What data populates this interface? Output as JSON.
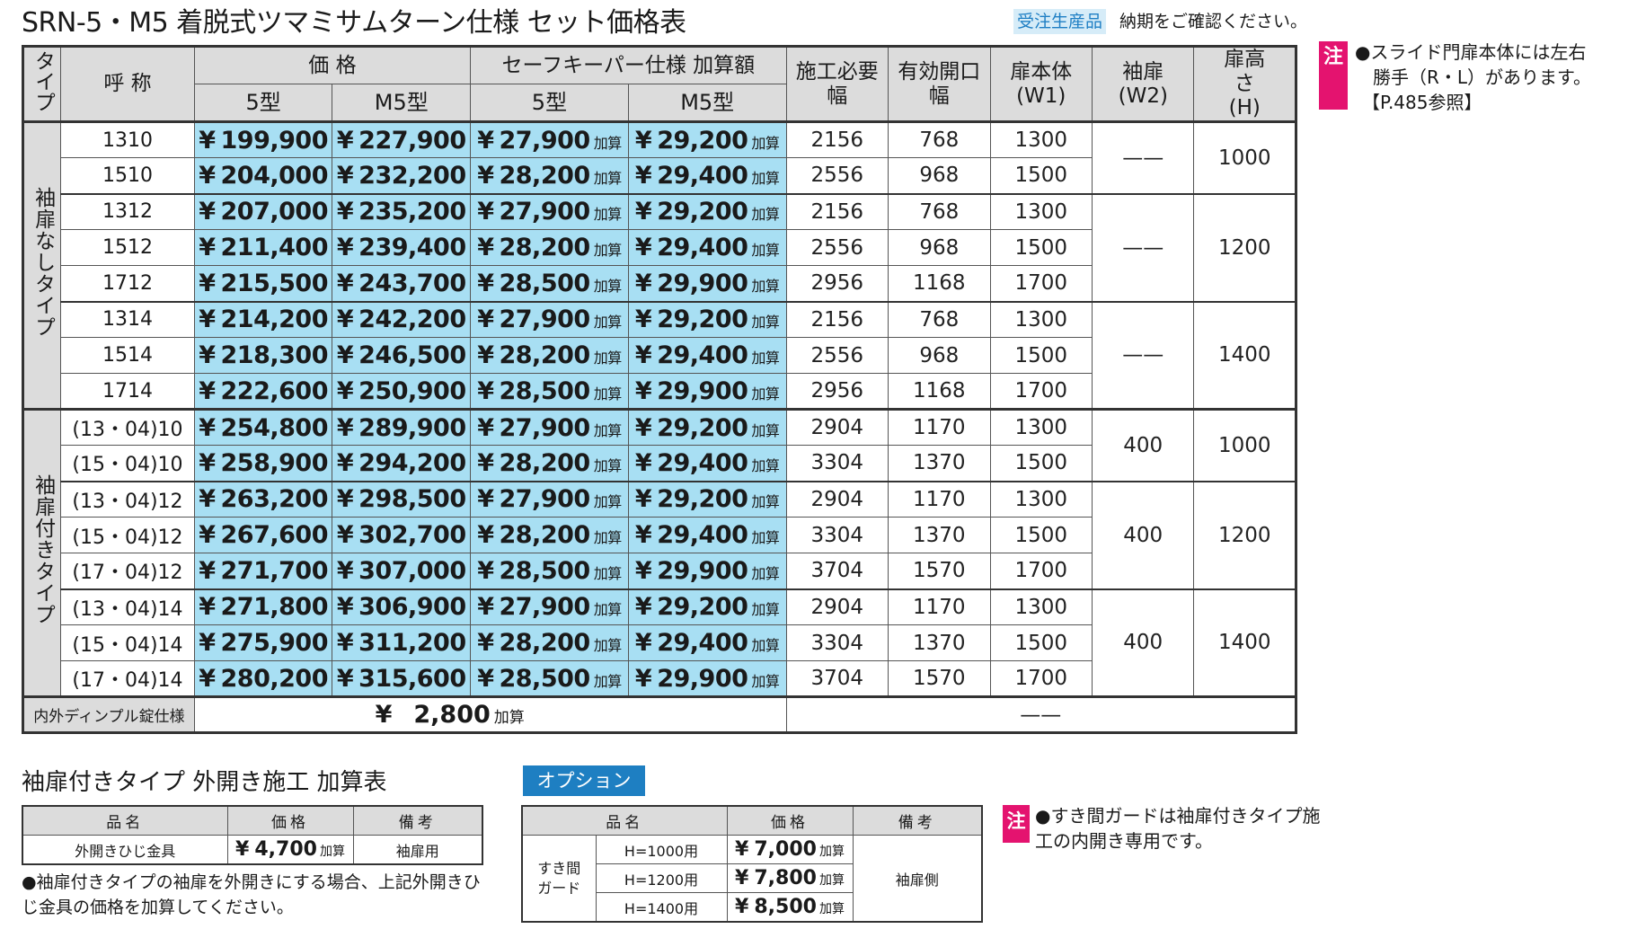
{
  "header": {
    "title": "SRN-5・M5 着脱式ツマミサムターン仕様 セット価格表",
    "order_badge": "受注生産品",
    "order_note": "納期をご確認ください。"
  },
  "main_table": {
    "headers": {
      "type": "タイプ",
      "name": "呼 称",
      "price": "価 格",
      "safekeeper": "セーフキーパー仕様 加算額",
      "price_5": "5型",
      "price_m5": "M5型",
      "sk_5": "5型",
      "sk_m5": "M5型",
      "sekou": "施工必要幅",
      "yuko": "有効開口幅",
      "w1": "扉本体(W1)",
      "w2": "袖扉(W2)",
      "h": "扉高さ(H)"
    },
    "yen": "¥",
    "add_unit": "加算",
    "dash": "——",
    "sections": [
      {
        "type_label": "袖扉なしタイプ",
        "groups": [
          {
            "w2": "——",
            "h": "1000",
            "rows": [
              {
                "name": "1310",
                "p5": "199,900",
                "pm5": "227,900",
                "sk5": "27,900",
                "skm5": "29,200",
                "sekou": "2156",
                "yuko": "768",
                "w1": "1300"
              },
              {
                "name": "1510",
                "p5": "204,000",
                "pm5": "232,200",
                "sk5": "28,200",
                "skm5": "29,400",
                "sekou": "2556",
                "yuko": "968",
                "w1": "1500"
              }
            ]
          },
          {
            "w2": "——",
            "h": "1200",
            "rows": [
              {
                "name": "1312",
                "p5": "207,000",
                "pm5": "235,200",
                "sk5": "27,900",
                "skm5": "29,200",
                "sekou": "2156",
                "yuko": "768",
                "w1": "1300"
              },
              {
                "name": "1512",
                "p5": "211,400",
                "pm5": "239,400",
                "sk5": "28,200",
                "skm5": "29,400",
                "sekou": "2556",
                "yuko": "968",
                "w1": "1500"
              },
              {
                "name": "1712",
                "p5": "215,500",
                "pm5": "243,700",
                "sk5": "28,500",
                "skm5": "29,900",
                "sekou": "2956",
                "yuko": "1168",
                "w1": "1700"
              }
            ]
          },
          {
            "w2": "——",
            "h": "1400",
            "rows": [
              {
                "name": "1314",
                "p5": "214,200",
                "pm5": "242,200",
                "sk5": "27,900",
                "skm5": "29,200",
                "sekou": "2156",
                "yuko": "768",
                "w1": "1300"
              },
              {
                "name": "1514",
                "p5": "218,300",
                "pm5": "246,500",
                "sk5": "28,200",
                "skm5": "29,400",
                "sekou": "2556",
                "yuko": "968",
                "w1": "1500"
              },
              {
                "name": "1714",
                "p5": "222,600",
                "pm5": "250,900",
                "sk5": "28,500",
                "skm5": "29,900",
                "sekou": "2956",
                "yuko": "1168",
                "w1": "1700"
              }
            ]
          }
        ]
      },
      {
        "type_label": "袖扉付きタイプ",
        "groups": [
          {
            "w2": "400",
            "h": "1000",
            "rows": [
              {
                "name": "(13・04)10",
                "p5": "254,800",
                "pm5": "289,900",
                "sk5": "27,900",
                "skm5": "29,200",
                "sekou": "2904",
                "yuko": "1170",
                "w1": "1300"
              },
              {
                "name": "(15・04)10",
                "p5": "258,900",
                "pm5": "294,200",
                "sk5": "28,200",
                "skm5": "29,400",
                "sekou": "3304",
                "yuko": "1370",
                "w1": "1500"
              }
            ]
          },
          {
            "w2": "400",
            "h": "1200",
            "rows": [
              {
                "name": "(13・04)12",
                "p5": "263,200",
                "pm5": "298,500",
                "sk5": "27,900",
                "skm5": "29,200",
                "sekou": "2904",
                "yuko": "1170",
                "w1": "1300"
              },
              {
                "name": "(15・04)12",
                "p5": "267,600",
                "pm5": "302,700",
                "sk5": "28,200",
                "skm5": "29,400",
                "sekou": "3304",
                "yuko": "1370",
                "w1": "1500"
              },
              {
                "name": "(17・04)12",
                "p5": "271,700",
                "pm5": "307,000",
                "sk5": "28,500",
                "skm5": "29,900",
                "sekou": "3704",
                "yuko": "1570",
                "w1": "1700"
              }
            ]
          },
          {
            "w2": "400",
            "h": "1400",
            "rows": [
              {
                "name": "(13・04)14",
                "p5": "271,800",
                "pm5": "306,900",
                "sk5": "27,900",
                "skm5": "29,200",
                "sekou": "2904",
                "yuko": "1170",
                "w1": "1300"
              },
              {
                "name": "(15・04)14",
                "p5": "275,900",
                "pm5": "311,200",
                "sk5": "28,200",
                "skm5": "29,400",
                "sekou": "3304",
                "yuko": "1370",
                "w1": "1500"
              },
              {
                "name": "(17・04)14",
                "p5": "280,200",
                "pm5": "315,600",
                "sk5": "28,500",
                "skm5": "29,900",
                "sekou": "3704",
                "yuko": "1570",
                "w1": "1700"
              }
            ]
          }
        ]
      }
    ],
    "dimple": {
      "label": "内外ディンプル錠仕様",
      "value": "2,800",
      "unit": "加算",
      "dash": "——"
    }
  },
  "note1": {
    "badge": "注",
    "lines": [
      "●スライド門扉本体には左右",
      "勝手（R・L）があります。",
      "【P.485参照】"
    ]
  },
  "side_table": {
    "title": "袖扉付きタイプ 外開き施工 加算表",
    "headers": {
      "name": "品名",
      "price": "価格",
      "remark": "備考"
    },
    "row": {
      "name": "外開きひじ金具",
      "yen": "¥",
      "price": "4,700",
      "unit": "加算",
      "remark": "袖扉用"
    },
    "note": "●袖扉付きタイプの袖扉を外開きにする場合、上記外開きひじ金具の価格を加算してください。"
  },
  "option": {
    "badge": "オプション",
    "headers": {
      "name": "品名",
      "price": "価格",
      "remark": "備考"
    },
    "item_name": "すき間ガード",
    "remark": "袖扉側",
    "yen": "¥",
    "unit": "加算",
    "rows": [
      {
        "size": "H=1000用",
        "price": "7,000"
      },
      {
        "size": "H=1200用",
        "price": "7,800"
      },
      {
        "size": "H=1400用",
        "price": "8,500"
      }
    ]
  },
  "note2": {
    "badge": "注",
    "text": "●すき間ガードは袖扉付きタイプ施工の内開き専用です。"
  }
}
